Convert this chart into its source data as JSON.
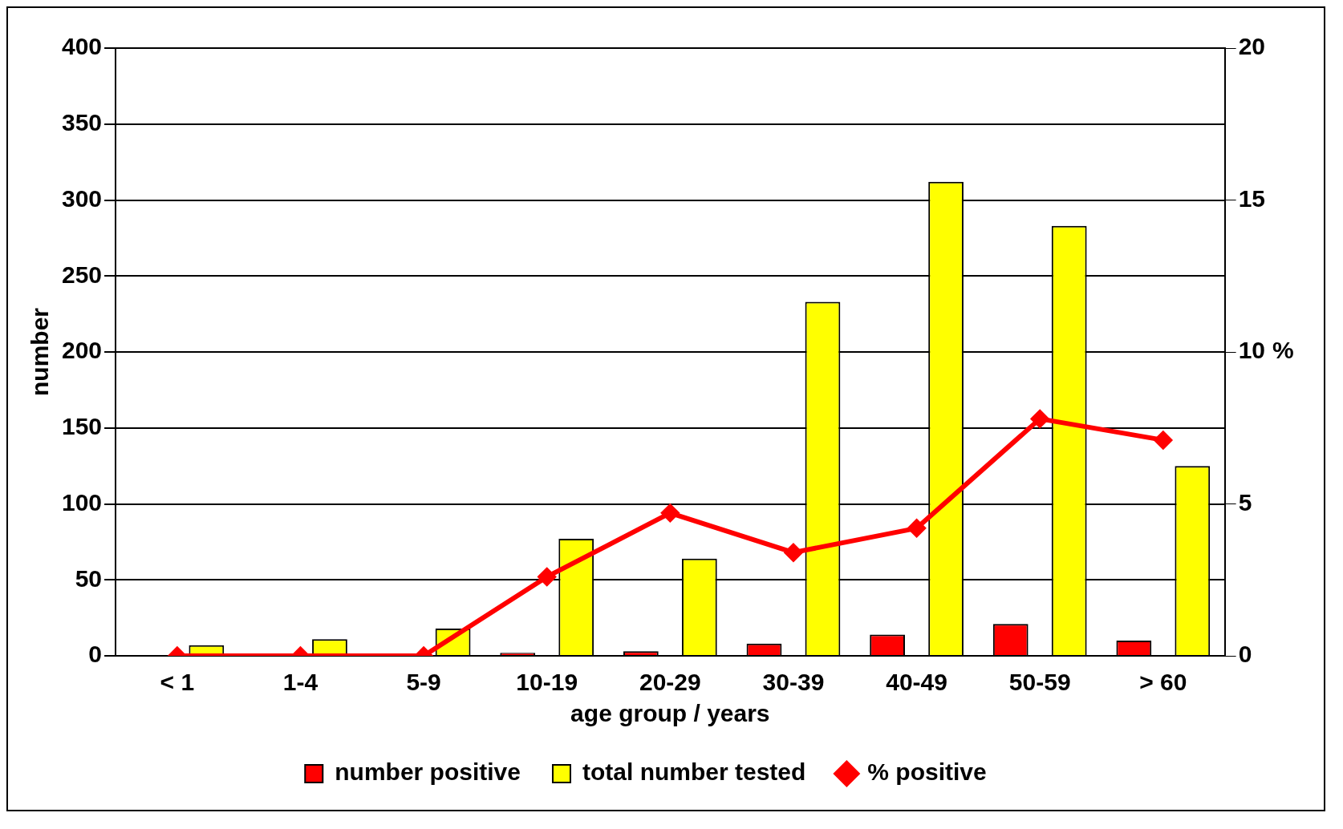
{
  "chart_data": {
    "type": "bar",
    "xlabel": "age group / years",
    "ylabel": "number",
    "y2label": "%",
    "categories": [
      "< 1",
      "1-4",
      "5-9",
      "10-19",
      "20-29",
      "30-39",
      "40-49",
      "50-59",
      "> 60"
    ],
    "series": [
      {
        "name": "number positive",
        "color": "#ff0000",
        "values": [
          0,
          0,
          0,
          2,
          3,
          8,
          14,
          21,
          10
        ]
      },
      {
        "name": "total number tested",
        "color": "#ffff00",
        "values": [
          7,
          11,
          18,
          77,
          64,
          233,
          312,
          283,
          125
        ]
      },
      {
        "name": "% positive",
        "type": "line",
        "axis": "y2",
        "color": "#ff0000",
        "values": [
          0,
          0,
          0,
          2.6,
          4.7,
          3.4,
          4.2,
          7.8,
          7.1
        ]
      }
    ],
    "ylim": [
      0,
      400
    ],
    "yticks": [
      0,
      50,
      100,
      150,
      200,
      250,
      300,
      350,
      400
    ],
    "y2lim": [
      0,
      20
    ],
    "y2ticks": [
      0,
      5,
      10,
      15,
      20
    ],
    "grid": "y",
    "legend": "bottom",
    "marker": "diamond",
    "line_style": "solid"
  }
}
